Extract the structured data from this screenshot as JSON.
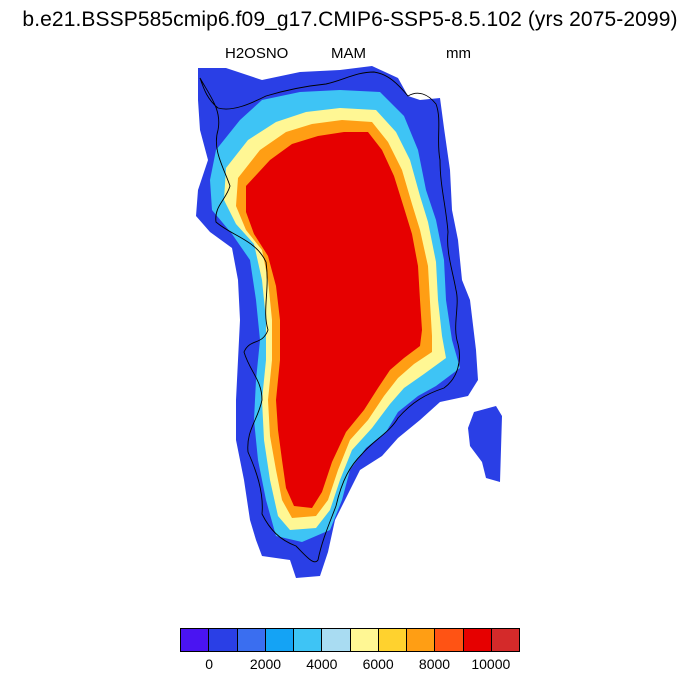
{
  "title": "b.e21.BSSP585cmip6.f09_g17.CMIP6-SSP5-8.5.102 (yrs 2075-2099)",
  "subtitle": {
    "variable": "H2OSNO",
    "season": "MAM",
    "units": "mm"
  },
  "colorbar": {
    "colors": [
      "#4a14f2",
      "#2a3fe6",
      "#3a6ef0",
      "#14a3f5",
      "#3ec4f5",
      "#a9dcf2",
      "#fff794",
      "#ffd22e",
      "#ff9e14",
      "#ff5314",
      "#e60000",
      "#d42a2a"
    ],
    "tick_labels": [
      "0",
      "2000",
      "4000",
      "6000",
      "8000",
      "10000"
    ]
  },
  "map_colors": {
    "ocean": "#ffffff",
    "coastline": "#000000"
  }
}
